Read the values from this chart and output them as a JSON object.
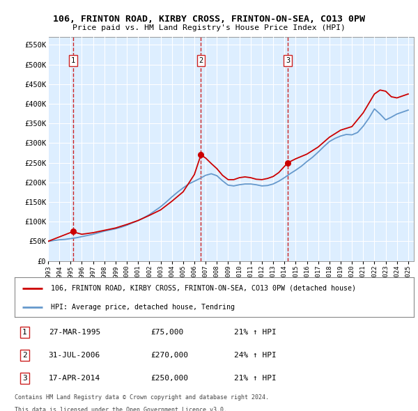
{
  "title": "106, FRINTON ROAD, KIRBY CROSS, FRINTON-ON-SEA, CO13 0PW",
  "subtitle": "Price paid vs. HM Land Registry's House Price Index (HPI)",
  "legend_house": "106, FRINTON ROAD, KIRBY CROSS, FRINTON-ON-SEA, CO13 0PW (detached house)",
  "legend_hpi": "HPI: Average price, detached house, Tendring",
  "footer1": "Contains HM Land Registry data © Crown copyright and database right 2024.",
  "footer2": "This data is licensed under the Open Government Licence v3.0.",
  "transactions": [
    {
      "num": 1,
      "date": "27-MAR-1995",
      "price": 75000,
      "hpi_pct": "21% ↑ HPI",
      "year": 1995.23
    },
    {
      "num": 2,
      "date": "31-JUL-2006",
      "price": 270000,
      "hpi_pct": "24% ↑ HPI",
      "year": 2006.58
    },
    {
      "num": 3,
      "date": "17-APR-2014",
      "price": 250000,
      "hpi_pct": "21% ↑ HPI",
      "year": 2014.3
    }
  ],
  "ylim": [
    0,
    570000
  ],
  "yticks": [
    0,
    50000,
    100000,
    150000,
    200000,
    250000,
    300000,
    350000,
    400000,
    450000,
    500000,
    550000
  ],
  "xlim_start": 1993.0,
  "xlim_end": 2025.5,
  "xticks": [
    1993,
    1994,
    1995,
    1996,
    1997,
    1998,
    1999,
    2000,
    2001,
    2002,
    2003,
    2004,
    2005,
    2006,
    2007,
    2008,
    2009,
    2010,
    2011,
    2012,
    2013,
    2014,
    2015,
    2016,
    2017,
    2018,
    2019,
    2020,
    2021,
    2022,
    2023,
    2024,
    2025
  ],
  "hpi_color": "#6699cc",
  "price_color": "#cc0000",
  "dashed_color": "#cc2222",
  "hpi_data_years": [
    1993.0,
    1993.5,
    1994.0,
    1994.5,
    1995.0,
    1995.5,
    1996.0,
    1996.5,
    1997.0,
    1997.5,
    1998.0,
    1998.5,
    1999.0,
    1999.5,
    2000.0,
    2000.5,
    2001.0,
    2001.5,
    2002.0,
    2002.5,
    2003.0,
    2003.5,
    2004.0,
    2004.5,
    2005.0,
    2005.5,
    2006.0,
    2006.5,
    2007.0,
    2007.5,
    2008.0,
    2008.5,
    2009.0,
    2009.5,
    2010.0,
    2010.5,
    2011.0,
    2011.5,
    2012.0,
    2012.5,
    2013.0,
    2013.5,
    2014.0,
    2014.5,
    2015.0,
    2015.5,
    2016.0,
    2016.5,
    2017.0,
    2017.5,
    2018.0,
    2018.5,
    2019.0,
    2019.5,
    2020.0,
    2020.5,
    2021.0,
    2021.5,
    2022.0,
    2022.5,
    2023.0,
    2023.5,
    2024.0,
    2024.5,
    2025.0
  ],
  "hpi_data_values": [
    50000,
    52000,
    54000,
    55000,
    57000,
    59000,
    62000,
    65000,
    68000,
    72000,
    76000,
    79000,
    82000,
    86000,
    91000,
    97000,
    103000,
    110000,
    118000,
    128000,
    138000,
    150000,
    163000,
    175000,
    186000,
    196000,
    203000,
    210000,
    218000,
    222000,
    217000,
    204000,
    193000,
    191000,
    194000,
    196000,
    196000,
    194000,
    191000,
    192000,
    196000,
    203000,
    212000,
    222000,
    231000,
    241000,
    253000,
    264000,
    277000,
    291000,
    304000,
    312000,
    318000,
    322000,
    321000,
    327000,
    343000,
    363000,
    387000,
    374000,
    359000,
    366000,
    374000,
    379000,
    384000
  ],
  "price_data_years": [
    1993.0,
    1995.23,
    1995.5,
    1996.0,
    1997.0,
    1998.0,
    1999.0,
    2000.0,
    2001.0,
    2002.0,
    2003.0,
    2004.0,
    2005.0,
    2006.0,
    2006.58,
    2007.0,
    2007.5,
    2008.0,
    2008.5,
    2009.0,
    2009.5,
    2010.0,
    2010.5,
    2011.0,
    2011.5,
    2012.0,
    2012.5,
    2013.0,
    2013.5,
    2014.3,
    2015.0,
    2016.0,
    2017.0,
    2018.0,
    2019.0,
    2020.0,
    2021.0,
    2022.0,
    2022.5,
    2023.0,
    2023.5,
    2024.0,
    2024.5,
    2025.0
  ],
  "price_data_values": [
    50000,
    75000,
    72000,
    68000,
    72000,
    78000,
    84000,
    93000,
    103000,
    116000,
    130000,
    152000,
    176000,
    220000,
    270000,
    262000,
    248000,
    235000,
    218000,
    207000,
    207000,
    212000,
    214000,
    212000,
    208000,
    207000,
    210000,
    215000,
    225000,
    250000,
    260000,
    272000,
    290000,
    315000,
    333000,
    342000,
    377000,
    425000,
    435000,
    432000,
    418000,
    415000,
    420000,
    425000
  ]
}
